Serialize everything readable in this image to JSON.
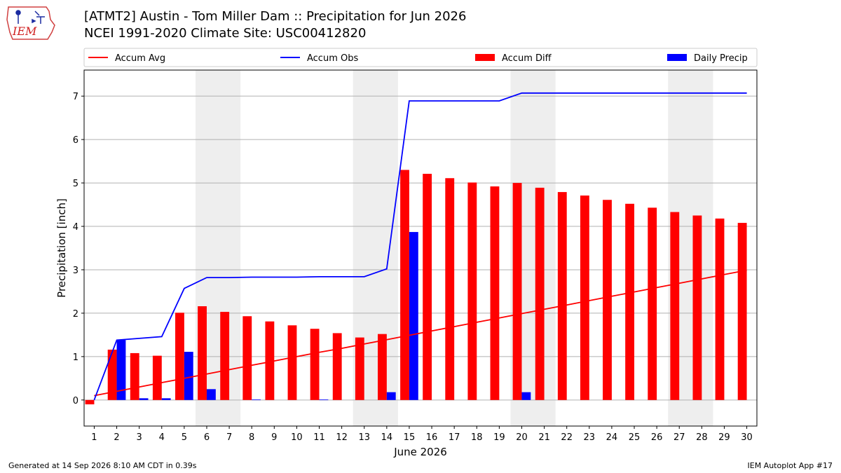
{
  "header": {
    "title_line1": "[ATMT2] Austin - Tom Miller Dam :: Precipitation for Jun 2026",
    "title_line2": "NCEI 1991-2020 Climate Site: USC00412820"
  },
  "logo": {
    "text": "IEM",
    "icon": "iem-iowa-state-logo"
  },
  "footer": {
    "left": "Generated at 14 Sep 2026 8:10 AM CDT in 0.39s",
    "right": "IEM Autoplot App #17"
  },
  "colors": {
    "accum_avg": "#ff0000",
    "accum_obs": "#0000ff",
    "accum_diff": "#ff0000",
    "daily_precip": "#0000ff",
    "weekend_shade": "#eeeeee",
    "grid": "#b0b0b0"
  },
  "chart_data": {
    "type": "bar",
    "xlabel": "June 2026",
    "ylabel": "Precipitation [inch]",
    "ylim": [
      -0.6,
      7.6
    ],
    "yticks": [
      0,
      1,
      2,
      3,
      4,
      5,
      6,
      7
    ],
    "grid": "horizontal",
    "legend_position": "top",
    "x": [
      1,
      2,
      3,
      4,
      5,
      6,
      7,
      8,
      9,
      10,
      11,
      12,
      13,
      14,
      15,
      16,
      17,
      18,
      19,
      20,
      21,
      22,
      23,
      24,
      25,
      26,
      27,
      28,
      29,
      30
    ],
    "weekend_shaded_days": [
      [
        6,
        7
      ],
      [
        13,
        14
      ],
      [
        20,
        21
      ],
      [
        27,
        28
      ]
    ],
    "series": [
      {
        "name": "Accum Avg",
        "kind": "line",
        "values": [
          0.1,
          0.2,
          0.3,
          0.4,
          0.5,
          0.6,
          0.7,
          0.8,
          0.9,
          1.0,
          1.1,
          1.19,
          1.29,
          1.39,
          1.49,
          1.59,
          1.69,
          1.79,
          1.89,
          1.99,
          2.09,
          2.19,
          2.29,
          2.39,
          2.49,
          2.59,
          2.69,
          2.79,
          2.89,
          2.99
        ]
      },
      {
        "name": "Accum Obs",
        "kind": "line",
        "values": [
          0.0,
          1.38,
          1.42,
          1.46,
          2.57,
          2.82,
          2.82,
          2.83,
          2.83,
          2.83,
          2.84,
          2.84,
          2.84,
          3.02,
          6.89,
          6.89,
          6.89,
          6.89,
          6.89,
          7.07,
          7.07,
          7.07,
          7.07,
          7.07,
          7.07,
          7.07,
          7.07,
          7.07,
          7.07,
          7.07
        ]
      },
      {
        "name": "Accum Diff",
        "kind": "bar",
        "values": [
          -0.1,
          1.16,
          1.08,
          1.02,
          2.01,
          2.16,
          2.03,
          1.93,
          1.81,
          1.72,
          1.64,
          1.54,
          1.44,
          1.52,
          5.3,
          5.21,
          5.11,
          5.01,
          4.92,
          5.0,
          4.89,
          4.79,
          4.71,
          4.61,
          4.52,
          4.43,
          4.33,
          4.25,
          4.18,
          4.08
        ]
      },
      {
        "name": "Daily Precip",
        "kind": "bar",
        "values": [
          0.0,
          1.38,
          0.04,
          0.04,
          1.11,
          0.25,
          0.0,
          0.01,
          0.0,
          0.0,
          0.01,
          0.0,
          0.0,
          0.18,
          3.87,
          0.0,
          0.0,
          0.0,
          0.0,
          0.18,
          0.0,
          0.0,
          0.0,
          0.0,
          0.0,
          0.0,
          0.0,
          0.0,
          0.0,
          0.0
        ]
      }
    ]
  }
}
